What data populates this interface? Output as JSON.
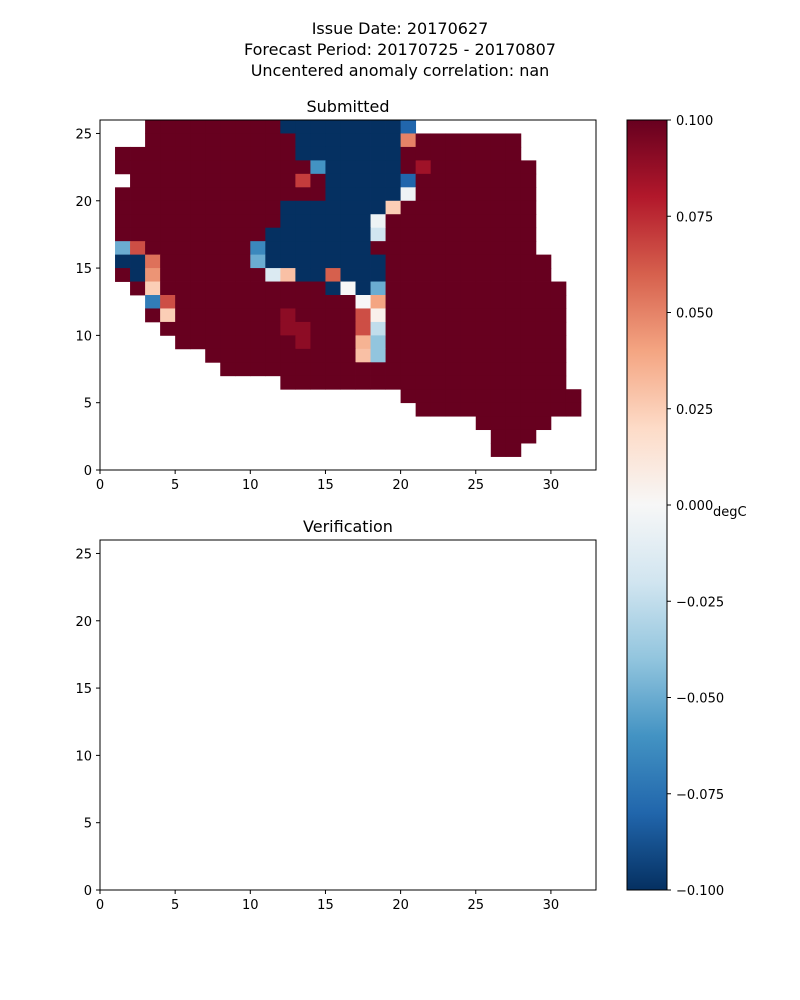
{
  "figure": {
    "title_lines": [
      "Issue Date: 20170627",
      "Forecast Period: 20170725 - 20170807",
      "Uncentered anomaly correlation: nan"
    ]
  },
  "chart_data": [
    {
      "type": "heatmap",
      "title": "Submitted",
      "xlim": [
        0,
        33
      ],
      "ylim": [
        0,
        26
      ],
      "x_ticks": [
        "0",
        "5",
        "10",
        "15",
        "20",
        "25",
        "30"
      ],
      "y_ticks": [
        "0",
        "5",
        "10",
        "15",
        "20",
        "25"
      ],
      "default_value": 0.1,
      "rows": [
        {
          "y": 25,
          "xmin": 3,
          "xmax": 20
        },
        {
          "y": 24,
          "xmin": 3,
          "xmax": 27
        },
        {
          "y": 23,
          "xmin": 1,
          "xmax": 27
        },
        {
          "y": 22,
          "xmin": 1,
          "xmax": 28
        },
        {
          "y": 21,
          "xmin": 2,
          "xmax": 28
        },
        {
          "y": 20,
          "xmin": 1,
          "xmax": 28
        },
        {
          "y": 19,
          "xmin": 1,
          "xmax": 28
        },
        {
          "y": 18,
          "xmin": 1,
          "xmax": 28
        },
        {
          "y": 17,
          "xmin": 1,
          "xmax": 28
        },
        {
          "y": 16,
          "xmin": 1,
          "xmax": 28
        },
        {
          "y": 15,
          "xmin": 1,
          "xmax": 29
        },
        {
          "y": 14,
          "xmin": 1,
          "xmax": 29
        },
        {
          "y": 13,
          "xmin": 2,
          "xmax": 30
        },
        {
          "y": 12,
          "xmin": 3,
          "xmax": 30
        },
        {
          "y": 11,
          "xmin": 3,
          "xmax": 30
        },
        {
          "y": 10,
          "xmin": 4,
          "xmax": 30
        },
        {
          "y": 9,
          "xmin": 5,
          "xmax": 30
        },
        {
          "y": 8,
          "xmin": 7,
          "xmax": 30
        },
        {
          "y": 7,
          "xmin": 8,
          "xmax": 30
        },
        {
          "y": 6,
          "xmin": 12,
          "xmax": 30
        },
        {
          "y": 5,
          "xmin": 20,
          "xmax": 31
        },
        {
          "y": 4,
          "xmin": 21,
          "xmax": 31
        },
        {
          "y": 3,
          "xmin": 25,
          "xmax": 29
        },
        {
          "y": 2,
          "xmin": 26,
          "xmax": 28
        },
        {
          "y": 1,
          "xmin": 26,
          "xmax": 27
        }
      ],
      "cold_block": [
        {
          "y": 25,
          "xmin": 12,
          "xmax": 19
        },
        {
          "y": 24,
          "xmin": 13,
          "xmax": 19
        },
        {
          "y": 23,
          "xmin": 13,
          "xmax": 19
        },
        {
          "y": 22,
          "xmin": 14,
          "xmax": 19
        },
        {
          "y": 21,
          "xmin": 15,
          "xmax": 19
        },
        {
          "y": 20,
          "xmin": 15,
          "xmax": 19
        },
        {
          "y": 19,
          "xmin": 12,
          "xmax": 19
        },
        {
          "y": 18,
          "xmin": 12,
          "xmax": 18
        },
        {
          "y": 17,
          "xmin": 11,
          "xmax": 18
        },
        {
          "y": 16,
          "xmin": 11,
          "xmax": 17
        },
        {
          "y": 15,
          "xmin": 11,
          "xmax": 18
        },
        {
          "y": 14,
          "xmin": 11,
          "xmax": 18
        },
        {
          "y": 13,
          "xmin": 15,
          "xmax": 18
        },
        {
          "y": 12,
          "xmin": 17,
          "xmax": 17
        }
      ],
      "cells": [
        {
          "x": 20,
          "y": 25,
          "v": -0.08
        },
        {
          "x": 20,
          "y": 24,
          "v": 0.05
        },
        {
          "x": 14,
          "y": 22,
          "v": -0.06
        },
        {
          "x": 21,
          "y": 22,
          "v": 0.085
        },
        {
          "x": 13,
          "y": 21,
          "v": 0.07
        },
        {
          "x": 20,
          "y": 21,
          "v": -0.08
        },
        {
          "x": 20,
          "y": 20,
          "v": -0.005
        },
        {
          "x": 19,
          "y": 19,
          "v": 0.025
        },
        {
          "x": 18,
          "y": 18,
          "v": -0.005
        },
        {
          "x": 18,
          "y": 17,
          "v": -0.02
        },
        {
          "x": 1,
          "y": 16,
          "v": -0.05
        },
        {
          "x": 2,
          "y": 16,
          "v": 0.065
        },
        {
          "x": 10,
          "y": 16,
          "v": -0.065
        },
        {
          "x": 1,
          "y": 15,
          "v": -0.1
        },
        {
          "x": 2,
          "y": 15,
          "v": -0.1
        },
        {
          "x": 3,
          "y": 15,
          "v": 0.055
        },
        {
          "x": 10,
          "y": 15,
          "v": -0.05
        },
        {
          "x": 2,
          "y": 14,
          "v": -0.1
        },
        {
          "x": 3,
          "y": 14,
          "v": 0.045
        },
        {
          "x": 11,
          "y": 14,
          "v": -0.015
        },
        {
          "x": 12,
          "y": 14,
          "v": 0.03
        },
        {
          "x": 15,
          "y": 14,
          "v": 0.06
        },
        {
          "x": 3,
          "y": 13,
          "v": 0.025
        },
        {
          "x": 16,
          "y": 13,
          "v": 0.0
        },
        {
          "x": 18,
          "y": 13,
          "v": -0.05
        },
        {
          "x": 3,
          "y": 12,
          "v": -0.07
        },
        {
          "x": 4,
          "y": 12,
          "v": 0.065
        },
        {
          "x": 17,
          "y": 12,
          "v": 0.0
        },
        {
          "x": 18,
          "y": 12,
          "v": 0.04
        },
        {
          "x": 4,
          "y": 11,
          "v": 0.025
        },
        {
          "x": 12,
          "y": 11,
          "v": 0.09
        },
        {
          "x": 17,
          "y": 11,
          "v": 0.065
        },
        {
          "x": 18,
          "y": 11,
          "v": 0.005
        },
        {
          "x": 12,
          "y": 10,
          "v": 0.09
        },
        {
          "x": 13,
          "y": 10,
          "v": 0.09
        },
        {
          "x": 17,
          "y": 10,
          "v": 0.065
        },
        {
          "x": 18,
          "y": 10,
          "v": -0.025
        },
        {
          "x": 13,
          "y": 9,
          "v": 0.09
        },
        {
          "x": 17,
          "y": 9,
          "v": 0.035
        },
        {
          "x": 18,
          "y": 9,
          "v": -0.04
        },
        {
          "x": 17,
          "y": 8,
          "v": 0.03
        },
        {
          "x": 18,
          "y": 8,
          "v": -0.04
        }
      ]
    },
    {
      "type": "heatmap",
      "title": "Verification",
      "xlim": [
        0,
        33
      ],
      "ylim": [
        0,
        26
      ],
      "x_ticks": [
        "0",
        "5",
        "10",
        "15",
        "20",
        "25",
        "30"
      ],
      "y_ticks": [
        "0",
        "5",
        "10",
        "15",
        "20",
        "25"
      ],
      "rows": [],
      "cells": []
    }
  ],
  "colorbar": {
    "label": "degC",
    "range": [
      -0.1,
      0.1
    ],
    "tick_labels": [
      "0.100",
      "0.075",
      "0.050",
      "0.025",
      "0.000",
      "−0.025",
      "−0.050",
      "−0.075",
      "−0.100"
    ],
    "tick_values": [
      0.1,
      0.075,
      0.05,
      0.025,
      0.0,
      -0.025,
      -0.05,
      -0.075,
      -0.1
    ],
    "colormap": "RdBu_r",
    "stops": [
      "#053061",
      "#2166ac",
      "#4393c3",
      "#92c5de",
      "#d1e5f0",
      "#f7f7f7",
      "#fddbc7",
      "#f4a582",
      "#d6604d",
      "#b2182b",
      "#67001f"
    ]
  }
}
